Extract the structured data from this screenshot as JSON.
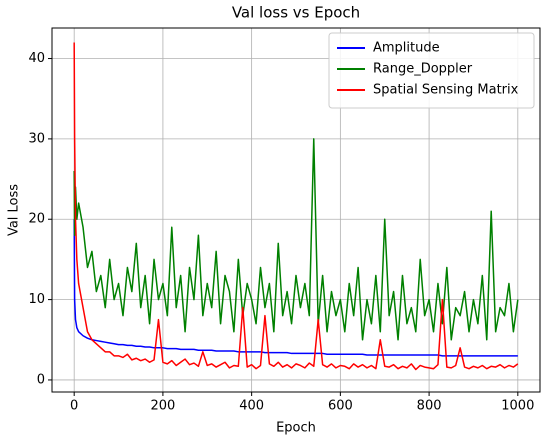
{
  "chart_data": {
    "type": "line",
    "title": "Val loss vs Epoch",
    "xlabel": "Epoch",
    "ylabel": "Val Loss",
    "x": [
      0,
      1,
      3,
      6,
      10,
      20,
      30,
      40,
      50,
      60,
      70,
      80,
      90,
      100,
      110,
      120,
      130,
      140,
      150,
      160,
      170,
      180,
      190,
      200,
      210,
      220,
      230,
      240,
      250,
      260,
      270,
      280,
      290,
      300,
      310,
      320,
      330,
      340,
      350,
      360,
      370,
      380,
      390,
      400,
      410,
      420,
      430,
      440,
      450,
      460,
      470,
      480,
      490,
      500,
      510,
      520,
      530,
      540,
      550,
      560,
      570,
      580,
      590,
      600,
      610,
      620,
      630,
      640,
      650,
      660,
      670,
      680,
      690,
      700,
      710,
      720,
      730,
      740,
      750,
      760,
      770,
      780,
      790,
      800,
      810,
      820,
      830,
      840,
      850,
      860,
      870,
      880,
      890,
      900,
      910,
      920,
      930,
      940,
      950,
      960,
      970,
      980,
      990,
      1000
    ],
    "series": [
      {
        "name": "Amplitude",
        "color": "#0000ff",
        "values": [
          20,
          10,
          7.5,
          6.5,
          6.0,
          5.5,
          5.2,
          5.0,
          4.9,
          4.8,
          4.7,
          4.6,
          4.5,
          4.4,
          4.4,
          4.3,
          4.3,
          4.2,
          4.2,
          4.1,
          4.1,
          4.0,
          4.0,
          4.0,
          3.9,
          3.9,
          3.9,
          3.8,
          3.8,
          3.8,
          3.8,
          3.7,
          3.7,
          3.7,
          3.7,
          3.6,
          3.6,
          3.6,
          3.6,
          3.6,
          3.5,
          3.5,
          3.5,
          3.5,
          3.5,
          3.5,
          3.4,
          3.4,
          3.4,
          3.4,
          3.4,
          3.4,
          3.3,
          3.3,
          3.3,
          3.3,
          3.3,
          3.3,
          3.3,
          3.3,
          3.2,
          3.2,
          3.2,
          3.2,
          3.2,
          3.2,
          3.2,
          3.2,
          3.2,
          3.1,
          3.1,
          3.1,
          3.1,
          3.1,
          3.1,
          3.1,
          3.1,
          3.1,
          3.1,
          3.1,
          3.1,
          3.1,
          3.1,
          3.1,
          3.1,
          3.1,
          3.0,
          3.0,
          3.0,
          3.0,
          3.0,
          3.0,
          3.0,
          3.0,
          3.0,
          3.0,
          3.0,
          3.0,
          3.0,
          3.0,
          3.0,
          3.0,
          3.0,
          3.0
        ]
      },
      {
        "name": "Range_Doppler",
        "color": "#008000",
        "values": [
          26,
          18,
          24,
          20,
          22,
          19,
          14,
          16,
          11,
          13,
          9,
          15,
          10,
          12,
          8,
          14,
          11,
          17,
          9,
          13,
          7,
          15,
          10,
          12,
          8,
          19,
          9,
          13,
          6,
          14,
          10,
          18,
          8,
          12,
          9,
          16,
          7,
          13,
          11,
          6,
          15,
          8,
          12,
          10,
          7,
          14,
          9,
          12,
          6,
          17,
          8,
          11,
          7,
          13,
          9,
          12,
          8,
          30,
          7,
          13,
          6,
          11,
          8,
          10,
          6,
          12,
          8,
          14,
          5,
          10,
          7,
          13,
          6,
          20,
          8,
          11,
          5,
          13,
          7,
          9,
          6,
          15,
          8,
          10,
          6,
          12,
          7,
          14,
          5,
          9,
          8,
          11,
          6,
          10,
          7,
          13,
          5,
          21,
          6,
          9,
          8,
          12,
          6,
          10
        ]
      },
      {
        "name": "Spatial Sensing Matrix",
        "color": "#ff0000",
        "values": [
          42,
          30,
          20,
          15,
          12,
          9,
          6,
          5,
          4.5,
          4,
          3.5,
          3.5,
          3,
          3,
          2.8,
          3.2,
          2.5,
          2.7,
          2.4,
          2.6,
          2.2,
          2.5,
          7.5,
          2.2,
          2.0,
          2.4,
          1.8,
          2.2,
          2.6,
          1.9,
          2.1,
          1.7,
          3.5,
          1.8,
          2.0,
          1.6,
          1.9,
          2.2,
          1.5,
          1.8,
          1.7,
          9,
          1.6,
          1.9,
          1.4,
          1.8,
          8,
          2.0,
          1.7,
          2.2,
          1.6,
          1.9,
          1.5,
          2.0,
          1.8,
          1.5,
          2.1,
          1.7,
          7.5,
          1.9,
          1.6,
          2.0,
          1.5,
          1.8,
          1.7,
          1.4,
          2.0,
          1.6,
          1.9,
          1.5,
          1.8,
          1.4,
          5,
          1.7,
          1.6,
          1.9,
          1.4,
          1.7,
          1.5,
          2.0,
          1.3,
          1.8,
          1.6,
          1.5,
          1.4,
          1.9,
          10,
          1.6,
          1.5,
          1.8,
          4,
          1.6,
          1.4,
          1.7,
          1.5,
          1.8,
          1.4,
          1.7,
          1.6,
          1.9,
          1.5,
          1.8,
          1.6,
          2.0
        ]
      }
    ],
    "xlim": [
      -50,
      1050
    ],
    "ylim": [
      -1.5,
      43.8
    ],
    "xticks": [
      0,
      200,
      400,
      600,
      800,
      1000
    ],
    "yticks": [
      0,
      10,
      20,
      30,
      40
    ],
    "grid": true,
    "legend": "upper right"
  }
}
